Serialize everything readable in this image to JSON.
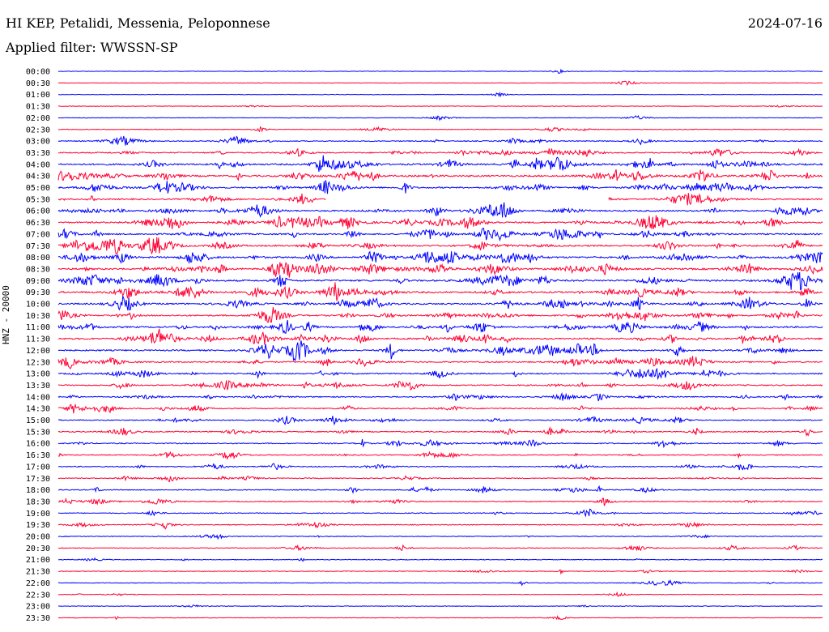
{
  "header": {
    "title": "HI KEP, Petalidi, Messenia, Peloponnese",
    "date": "2024-07-16",
    "filter_text": "Applied filter: WWSSN-SP"
  },
  "chart_data": {
    "type": "line",
    "title": "HI KEP, Petalidi, Messenia, Peloponnese",
    "subtitle": "Applied filter: WWSSN-SP",
    "ylabel": "HNZ - 20000",
    "xlabel": "",
    "row_colors": [
      "#0000ff",
      "#ff0033"
    ],
    "tick_labels": [
      "00:00",
      "00:30",
      "01:00",
      "01:30",
      "02:00",
      "02:30",
      "03:00",
      "03:30",
      "04:00",
      "04:30",
      "05:00",
      "05:30",
      "06:00",
      "06:30",
      "07:00",
      "07:30",
      "08:00",
      "08:30",
      "09:00",
      "09:30",
      "10:00",
      "10:30",
      "11:00",
      "11:30",
      "12:00",
      "12:30",
      "13:00",
      "13:30",
      "14:00",
      "14:30",
      "15:00",
      "15:30",
      "16:00",
      "16:30",
      "17:00",
      "17:30",
      "18:00",
      "18:30",
      "19:00",
      "19:30",
      "20:00",
      "20:30",
      "21:00",
      "21:30",
      "22:00",
      "22:30",
      "23:00",
      "23:30"
    ],
    "activity_level": [
      0.05,
      0.03,
      0.05,
      0.06,
      0.06,
      0.15,
      0.35,
      0.5,
      0.8,
      0.85,
      0.7,
      0.6,
      0.7,
      0.75,
      0.7,
      0.8,
      0.85,
      0.85,
      0.85,
      0.85,
      0.75,
      0.7,
      0.75,
      0.75,
      0.7,
      0.6,
      0.55,
      0.5,
      0.45,
      0.45,
      0.4,
      0.4,
      0.4,
      0.35,
      0.35,
      0.3,
      0.3,
      0.3,
      0.25,
      0.25,
      0.2,
      0.2,
      0.15,
      0.15,
      0.15,
      0.1,
      0.08,
      0.08
    ],
    "data_gaps": [
      {
        "row": "05:30",
        "start_fraction": 0.35,
        "end_fraction": 0.72
      }
    ],
    "grid": false,
    "legend": "none"
  }
}
